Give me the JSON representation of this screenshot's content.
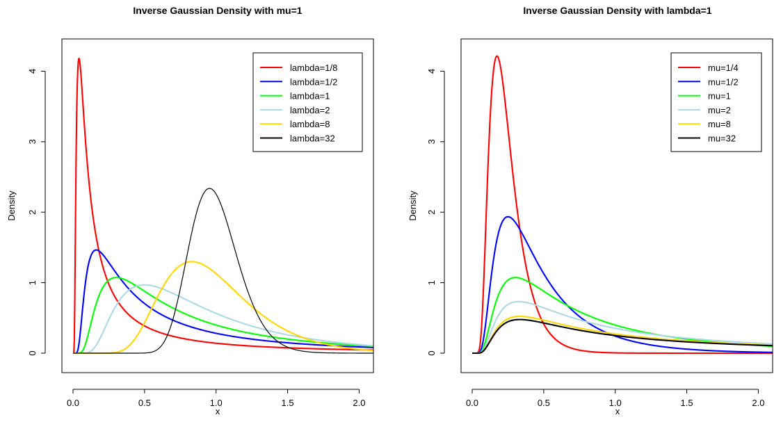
{
  "chart_data": [
    {
      "type": "line",
      "title": "Inverse Gaussian Density with mu=1",
      "xlabel": "x",
      "ylabel": "Density",
      "xlim": [
        0,
        2.1
      ],
      "ylim": [
        0,
        4.3
      ],
      "x_ticks": [
        "0.0",
        "0.5",
        "1.0",
        "1.5",
        "2.0"
      ],
      "y_ticks": [
        "0",
        "1",
        "2",
        "3",
        "4"
      ],
      "legend_position": "top-right",
      "grid": false,
      "fixed_parameter": {
        "mu": 1
      },
      "series": [
        {
          "name": "lambda=1/8",
          "color": "#ff0000",
          "mu": 1,
          "lambda": 0.125,
          "peak": {
            "x": 0.04,
            "y": 4.18
          }
        },
        {
          "name": "lambda=1/2",
          "color": "#0000ff",
          "mu": 1,
          "lambda": 0.5,
          "peak": {
            "x": 0.16,
            "y": 1.46
          }
        },
        {
          "name": "lambda=1",
          "color": "#00ff00",
          "mu": 1,
          "lambda": 1,
          "peak": {
            "x": 0.3,
            "y": 1.08
          }
        },
        {
          "name": "lambda=2",
          "color": "#add8e6",
          "mu": 1,
          "lambda": 2,
          "peak": {
            "x": 0.51,
            "y": 0.96
          }
        },
        {
          "name": "lambda=8",
          "color": "#ffd700",
          "mu": 1,
          "lambda": 8,
          "peak": {
            "x": 0.83,
            "y": 1.3
          }
        },
        {
          "name": "lambda=32",
          "color": "#000000",
          "mu": 1,
          "lambda": 32,
          "peak": {
            "x": 0.96,
            "y": 2.33
          }
        }
      ]
    },
    {
      "type": "line",
      "title": "Inverse Gaussian Density with lambda=1",
      "xlabel": "x",
      "ylabel": "Density",
      "xlim": [
        0,
        2.1
      ],
      "ylim": [
        0,
        4.3
      ],
      "x_ticks": [
        "0.0",
        "0.5",
        "1.0",
        "1.5",
        "2.0"
      ],
      "y_ticks": [
        "0",
        "1",
        "2",
        "3",
        "4"
      ],
      "legend_position": "top-right",
      "grid": false,
      "fixed_parameter": {
        "lambda": 1
      },
      "series": [
        {
          "name": "mu=1/4",
          "color": "#ff0000",
          "mu": 0.25,
          "lambda": 1,
          "peak": {
            "x": 0.17,
            "y": 4.21
          }
        },
        {
          "name": "mu=1/2",
          "color": "#0000ff",
          "mu": 0.5,
          "lambda": 1,
          "peak": {
            "x": 0.25,
            "y": 1.93
          }
        },
        {
          "name": "mu=1",
          "color": "#00ff00",
          "mu": 1,
          "lambda": 1,
          "peak": {
            "x": 0.3,
            "y": 1.08
          }
        },
        {
          "name": "mu=2",
          "color": "#add8e6",
          "mu": 2,
          "lambda": 1,
          "peak": {
            "x": 0.33,
            "y": 0.72
          }
        },
        {
          "name": "mu=8",
          "color": "#ffd700",
          "mu": 8,
          "lambda": 1,
          "peak": {
            "x": 0.33,
            "y": 0.52
          }
        },
        {
          "name": "mu=32",
          "color": "#000000",
          "mu": 32,
          "lambda": 1,
          "peak": {
            "x": 0.33,
            "y": 0.48
          }
        }
      ]
    }
  ]
}
